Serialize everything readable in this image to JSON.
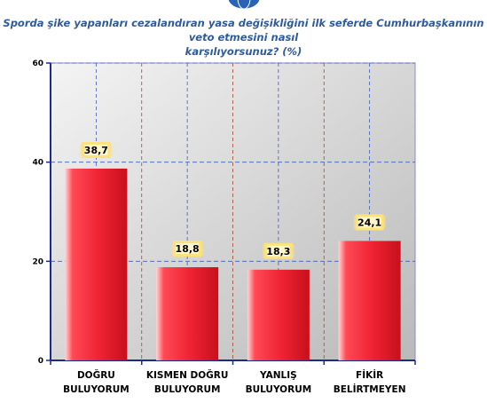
{
  "header": {
    "title_line1": "Sporda şike yapanları cezalandıran yasa değişikliğini ilk seferde Cumhurbaşkanının veto etmesini nasıl",
    "title_line2": "karşılıyorsunuz? (%)"
  },
  "colors": {
    "title": "#2f5a9c",
    "bar": "#ee2233",
    "label_box": "#fbe27a",
    "grid_vertical_inner": "#3b5fc4",
    "grid_vertical_outer": "#a24a2a",
    "grid_horizontal": "#3b5fc4",
    "plot_bg_light": "#f4f4f4",
    "plot_bg_dark": "#b9b9b9",
    "plot_border": "#8a8ad8"
  },
  "chart_data": {
    "type": "bar",
    "title": "Sporda şike yapanları cezalandıran yasa değişikliğini ilk seferde Cumhurbaşkanının veto etmesini nasıl karşılıyorsunuz? (%)",
    "categories": [
      [
        "DOĞRU",
        "BULUYORUM"
      ],
      [
        "KISMEN DOĞRU",
        "BULUYORUM"
      ],
      [
        "YANLIŞ",
        "BULUYORUM"
      ],
      [
        "FİKİR",
        "BELİRTMEYEN"
      ]
    ],
    "values": [
      38.7,
      18.8,
      18.3,
      24.1
    ],
    "data_labels": [
      "38,7",
      "18,8",
      "18,3",
      "24,1"
    ],
    "ylim": [
      0,
      60
    ],
    "yticks": [
      0,
      20,
      40,
      60
    ],
    "grid": true,
    "xlabel": "",
    "ylabel": ""
  }
}
